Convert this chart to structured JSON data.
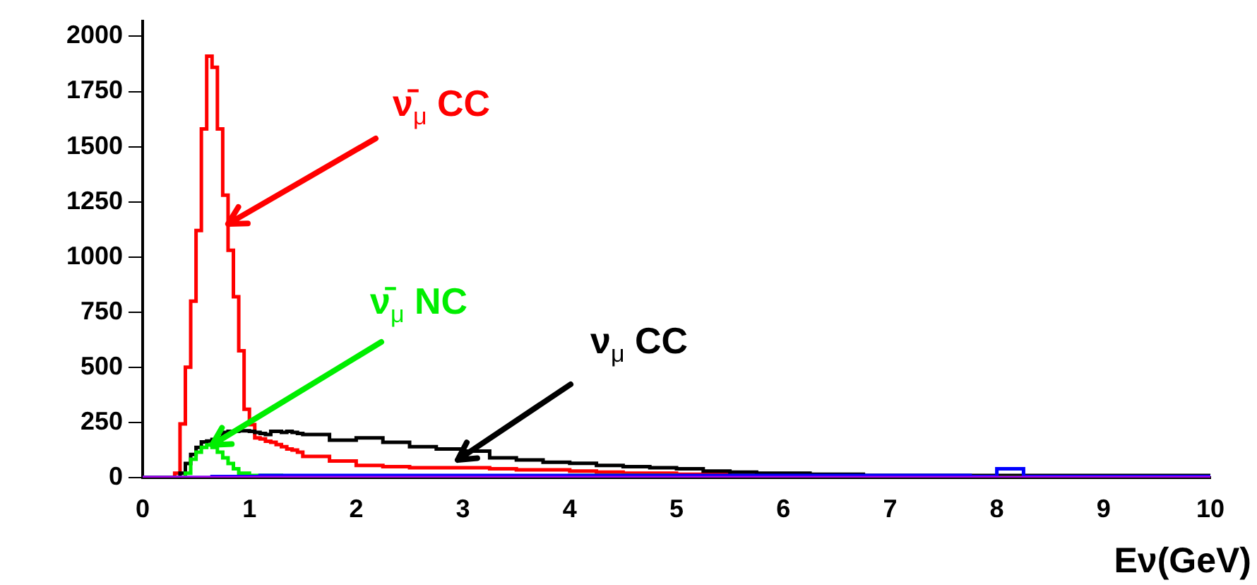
{
  "chart_data": {
    "type": "histogram",
    "xlabel": "Eν(GeV)",
    "bins": [
      0,
      0.3,
      0.35,
      0.4,
      0.45,
      0.5,
      0.55,
      0.6,
      0.65,
      0.7,
      0.75,
      0.8,
      0.85,
      0.9,
      0.95,
      1,
      1.05,
      1.1,
      1.15,
      1.2,
      1.25,
      1.3,
      1.35,
      1.4,
      1.45,
      1.5,
      1.75,
      2,
      2.25,
      2.5,
      2.75,
      3,
      3.25,
      3.5,
      3.75,
      4,
      4.25,
      4.5,
      4.75,
      5,
      5.25,
      5.5,
      5.75,
      6,
      6.25,
      6.5,
      6.75,
      7,
      7.25,
      7.5,
      7.75,
      8,
      8.25,
      8.5,
      8.75,
      9,
      9.25,
      9.5,
      9.75,
      10
    ],
    "series": [
      {
        "color": "#ff0000",
        "values": [
          0,
          20,
          243,
          500,
          800,
          1120,
          1580,
          1910,
          1860,
          1580,
          1280,
          1030,
          820,
          575,
          310,
          240,
          180,
          175,
          165,
          160,
          150,
          140,
          130,
          125,
          115,
          96,
          75,
          55,
          50,
          45,
          45,
          45,
          40,
          35,
          35,
          30,
          25,
          20,
          20,
          15,
          15,
          10,
          10,
          5,
          5,
          5,
          5,
          5,
          5,
          5,
          5,
          5,
          5,
          5,
          5,
          5,
          5,
          5,
          5
        ]
      },
      {
        "color": "#000000",
        "values": [
          0,
          0,
          20,
          64,
          105,
          137,
          162,
          166,
          173,
          182,
          205,
          210,
          210,
          212,
          212,
          210,
          205,
          200,
          195,
          210,
          210,
          205,
          210,
          205,
          200,
          195,
          170,
          180,
          160,
          140,
          130,
          120,
          90,
          80,
          70,
          65,
          55,
          50,
          45,
          40,
          30,
          25,
          20,
          20,
          15,
          15,
          10,
          10,
          10,
          10,
          10,
          10,
          10,
          10,
          10,
          10,
          10,
          10,
          10
        ]
      },
      {
        "color": "#00ee00",
        "values": [
          0,
          0,
          0,
          20,
          83,
          115,
          137,
          148,
          137,
          115,
          90,
          64,
          40,
          20,
          20,
          10,
          10,
          10,
          10,
          10,
          10,
          5,
          5,
          5,
          5,
          5,
          5,
          5,
          5,
          5,
          5,
          5,
          5,
          5,
          5,
          10,
          10,
          10,
          10,
          5,
          5,
          5,
          5,
          0,
          0,
          0,
          0,
          0,
          0,
          0,
          0,
          0,
          0,
          0,
          0,
          0,
          0,
          0,
          0
        ]
      },
      {
        "color": "#0000ff",
        "values": [
          0,
          0,
          0,
          0,
          0,
          0,
          0,
          0,
          5,
          5,
          5,
          5,
          5,
          5,
          5,
          5,
          5,
          10,
          10,
          10,
          10,
          10,
          10,
          10,
          10,
          10,
          10,
          10,
          10,
          10,
          10,
          10,
          10,
          10,
          10,
          10,
          10,
          10,
          10,
          10,
          10,
          10,
          10,
          10,
          10,
          10,
          10,
          10,
          10,
          10,
          5,
          40,
          5,
          5,
          5,
          5,
          5,
          5,
          5
        ]
      },
      {
        "color": "#aa00ee",
        "values": [
          0,
          0,
          0,
          0,
          0,
          0,
          0,
          0,
          0,
          0,
          0,
          0,
          0,
          0,
          0,
          0,
          0,
          0,
          0,
          0,
          0,
          0,
          0,
          0,
          0,
          0,
          0,
          0,
          0,
          0,
          0,
          0,
          0,
          0,
          0,
          0,
          0,
          0,
          0,
          0,
          0,
          0,
          0,
          0,
          0,
          0,
          0,
          0,
          0,
          0,
          0,
          0,
          0,
          0,
          0,
          0,
          0,
          0,
          0
        ]
      }
    ],
    "annotations": [
      {
        "text": "ν̄$_{μ}$ CC",
        "x": 0.8,
        "y": 1150
      },
      {
        "text": "ν$_{μ}$ CC",
        "x": 2.95,
        "y": 80
      },
      {
        "text": "ν̄$_{μ}$ NC",
        "x": 0.65,
        "y": 148
      }
    ],
    "xlim": [
      0,
      10
    ],
    "xticks": [
      0,
      1,
      2,
      3,
      4,
      5,
      6,
      7,
      8,
      9,
      10
    ],
    "ylim": [
      0,
      2070
    ],
    "yticks": [
      0,
      250,
      500,
      750,
      1000,
      1250,
      1500,
      1750,
      2000
    ],
    "grid": false,
    "legend": false
  }
}
